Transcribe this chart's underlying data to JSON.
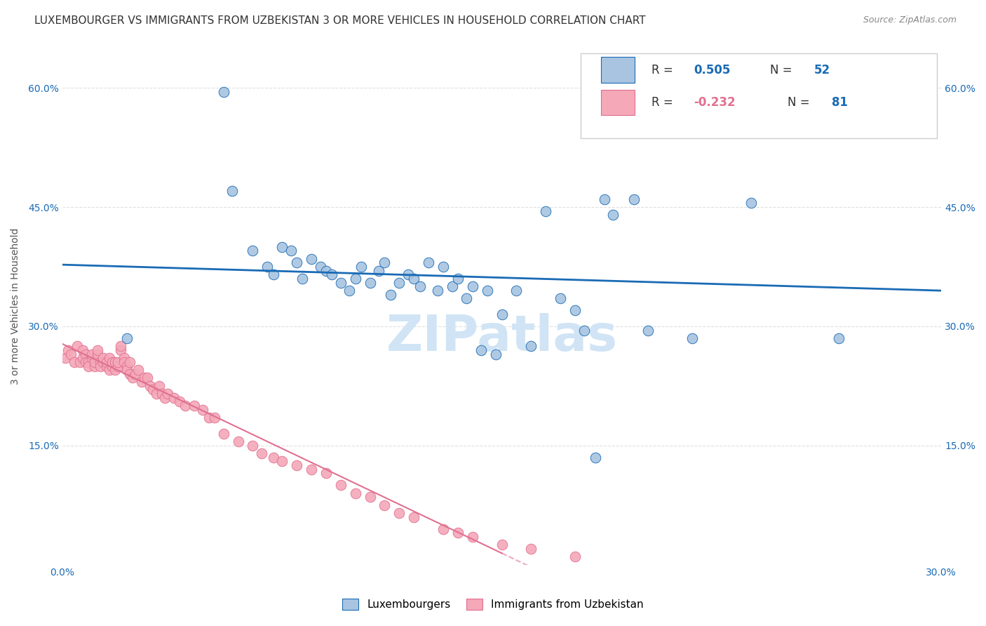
{
  "title": "LUXEMBOURGER VS IMMIGRANTS FROM UZBEKISTAN 3 OR MORE VEHICLES IN HOUSEHOLD CORRELATION CHART",
  "source": "Source: ZipAtlas.com",
  "ylabel": "3 or more Vehicles in Household",
  "x_min": 0.0,
  "x_max": 0.3,
  "y_min": 0.0,
  "y_max": 0.65,
  "x_ticks": [
    0.0,
    0.05,
    0.1,
    0.15,
    0.2,
    0.25,
    0.3
  ],
  "x_tick_labels": [
    "0.0%",
    "",
    "",
    "",
    "",
    "",
    "30.0%"
  ],
  "y_ticks": [
    0.0,
    0.15,
    0.3,
    0.45,
    0.6
  ],
  "y_tick_labels": [
    "",
    "15.0%",
    "30.0%",
    "45.0%",
    "60.0%"
  ],
  "legend_blue_R": "0.505",
  "legend_blue_N": "52",
  "legend_pink_R": "-0.232",
  "legend_pink_N": "81",
  "legend_labels": [
    "Luxembourgers",
    "Immigrants from Uzbekistan"
  ],
  "blue_color": "#a8c4e0",
  "pink_color": "#f4a8b8",
  "blue_line_color": "#1a6bb5",
  "pink_line_color": "#e07090",
  "watermark": "ZIPatlas",
  "blue_scatter_x": [
    0.022,
    0.055,
    0.058,
    0.065,
    0.07,
    0.072,
    0.075,
    0.078,
    0.08,
    0.082,
    0.085,
    0.088,
    0.09,
    0.092,
    0.095,
    0.098,
    0.1,
    0.102,
    0.105,
    0.108,
    0.11,
    0.112,
    0.115,
    0.118,
    0.12,
    0.122,
    0.125,
    0.128,
    0.13,
    0.133,
    0.135,
    0.138,
    0.14,
    0.143,
    0.145,
    0.148,
    0.15,
    0.155,
    0.16,
    0.165,
    0.17,
    0.175,
    0.178,
    0.182,
    0.185,
    0.188,
    0.195,
    0.2,
    0.215,
    0.235,
    0.265,
    0.285
  ],
  "blue_scatter_y": [
    0.285,
    0.595,
    0.47,
    0.395,
    0.375,
    0.365,
    0.4,
    0.395,
    0.38,
    0.36,
    0.385,
    0.375,
    0.37,
    0.365,
    0.355,
    0.345,
    0.36,
    0.375,
    0.355,
    0.37,
    0.38,
    0.34,
    0.355,
    0.365,
    0.36,
    0.35,
    0.38,
    0.345,
    0.375,
    0.35,
    0.36,
    0.335,
    0.35,
    0.27,
    0.345,
    0.265,
    0.315,
    0.345,
    0.275,
    0.445,
    0.335,
    0.32,
    0.295,
    0.135,
    0.46,
    0.44,
    0.46,
    0.295,
    0.285,
    0.455,
    0.285,
    0.545
  ],
  "pink_scatter_x": [
    0.001,
    0.002,
    0.003,
    0.004,
    0.005,
    0.006,
    0.007,
    0.007,
    0.008,
    0.008,
    0.009,
    0.009,
    0.01,
    0.01,
    0.011,
    0.011,
    0.012,
    0.012,
    0.013,
    0.013,
    0.014,
    0.014,
    0.015,
    0.015,
    0.016,
    0.016,
    0.017,
    0.017,
    0.018,
    0.018,
    0.019,
    0.019,
    0.02,
    0.02,
    0.021,
    0.021,
    0.022,
    0.022,
    0.023,
    0.023,
    0.024,
    0.025,
    0.026,
    0.027,
    0.028,
    0.029,
    0.03,
    0.031,
    0.032,
    0.033,
    0.034,
    0.035,
    0.036,
    0.038,
    0.04,
    0.042,
    0.045,
    0.048,
    0.05,
    0.052,
    0.055,
    0.06,
    0.065,
    0.068,
    0.072,
    0.075,
    0.08,
    0.085,
    0.09,
    0.095,
    0.1,
    0.105,
    0.11,
    0.115,
    0.12,
    0.13,
    0.135,
    0.14,
    0.15,
    0.16,
    0.175
  ],
  "pink_scatter_y": [
    0.26,
    0.27,
    0.265,
    0.255,
    0.275,
    0.255,
    0.26,
    0.27,
    0.265,
    0.255,
    0.255,
    0.25,
    0.26,
    0.265,
    0.25,
    0.255,
    0.265,
    0.27,
    0.255,
    0.25,
    0.255,
    0.26,
    0.25,
    0.255,
    0.245,
    0.26,
    0.25,
    0.255,
    0.245,
    0.255,
    0.25,
    0.255,
    0.27,
    0.275,
    0.26,
    0.255,
    0.25,
    0.245,
    0.24,
    0.255,
    0.235,
    0.24,
    0.245,
    0.23,
    0.235,
    0.235,
    0.225,
    0.22,
    0.215,
    0.225,
    0.215,
    0.21,
    0.215,
    0.21,
    0.205,
    0.2,
    0.2,
    0.195,
    0.185,
    0.185,
    0.165,
    0.155,
    0.15,
    0.14,
    0.135,
    0.13,
    0.125,
    0.12,
    0.115,
    0.1,
    0.09,
    0.085,
    0.075,
    0.065,
    0.06,
    0.045,
    0.04,
    0.035,
    0.025,
    0.02,
    0.01
  ],
  "title_fontsize": 11,
  "axis_label_fontsize": 10,
  "tick_fontsize": 10,
  "source_fontsize": 9,
  "watermark_fontsize": 52,
  "watermark_color": "#d0e4f5",
  "background_color": "#ffffff",
  "grid_color": "#e0e0e0"
}
